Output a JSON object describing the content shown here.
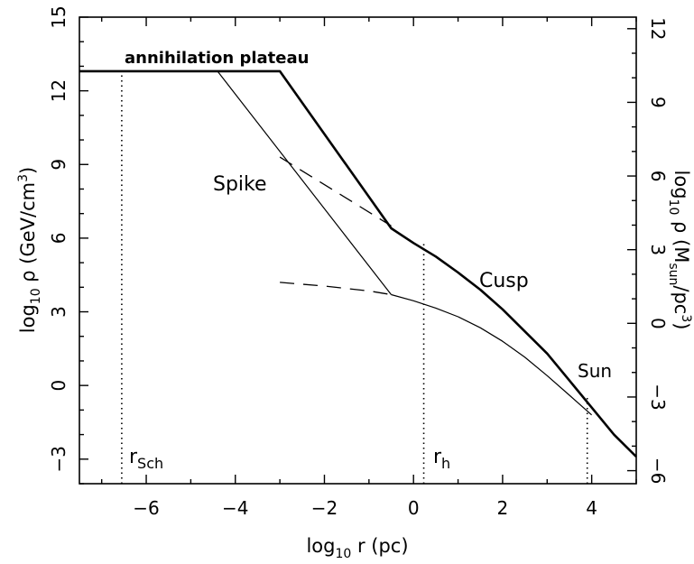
{
  "chart_data": {
    "type": "line",
    "title": "",
    "xlabel": "log10 r (pc)",
    "ylabel": "log10 ρ (GeV/cm3)",
    "ylabel_right": "log10 ρ (Msun/pc3)",
    "xlim": [
      -7.5,
      5
    ],
    "ylim": [
      -4,
      15
    ],
    "ylim_right": [
      -6.53,
      12.47
    ],
    "xticks": [
      -6,
      -4,
      -2,
      0,
      2,
      4
    ],
    "yticks": [
      -3,
      0,
      3,
      6,
      9,
      12,
      15
    ],
    "yticks_right": [
      -6,
      -3,
      0,
      3,
      6,
      9,
      12
    ],
    "grid": false,
    "series": [
      {
        "style": "thick-solid",
        "x": [
          -7.5,
          -3.0,
          -0.5,
          0.0,
          0.5,
          1.0,
          1.5,
          2.0,
          2.5,
          3.0,
          3.5,
          4.0,
          4.5,
          5.0
        ],
        "y": [
          12.8,
          12.8,
          6.4,
          5.8,
          5.25,
          4.6,
          3.9,
          3.1,
          2.2,
          1.3,
          0.2,
          -0.9,
          -2.0,
          -2.9
        ]
      },
      {
        "style": "thin-solid",
        "x": [
          -7.5,
          -4.4,
          -0.5
        ],
        "y": [
          12.8,
          12.8,
          3.7
        ]
      },
      {
        "style": "thin-solid",
        "x": [
          -0.5,
          0.0,
          0.5,
          1.0,
          1.5,
          2.0,
          2.5,
          3.0,
          3.5,
          4.0
        ],
        "y": [
          3.7,
          3.45,
          3.15,
          2.8,
          2.35,
          1.8,
          1.15,
          0.4,
          -0.4,
          -1.2
        ]
      },
      {
        "style": "dashed",
        "x": [
          -3.0,
          -0.5
        ],
        "y": [
          9.3,
          6.5
        ]
      },
      {
        "style": "dashed",
        "x": [
          -3.0,
          -2.0,
          -1.0,
          -0.5
        ],
        "y": [
          4.2,
          4.05,
          3.85,
          3.7
        ]
      }
    ],
    "vlines": [
      {
        "x": -6.55,
        "ymin": -4,
        "ymax": 12.8,
        "label": "r",
        "sub": "Sch"
      },
      {
        "x": 0.23,
        "ymin": -4,
        "ymax": 5.8,
        "label": "r",
        "sub": "h"
      },
      {
        "x": 3.9,
        "ymin": -4,
        "ymax": -0.5,
        "label": "",
        "sub": ""
      }
    ],
    "annotations": {
      "plateau": "annihilation plateau",
      "spike": "Spike",
      "cusp": "Cusp",
      "sun": "Sun"
    }
  }
}
